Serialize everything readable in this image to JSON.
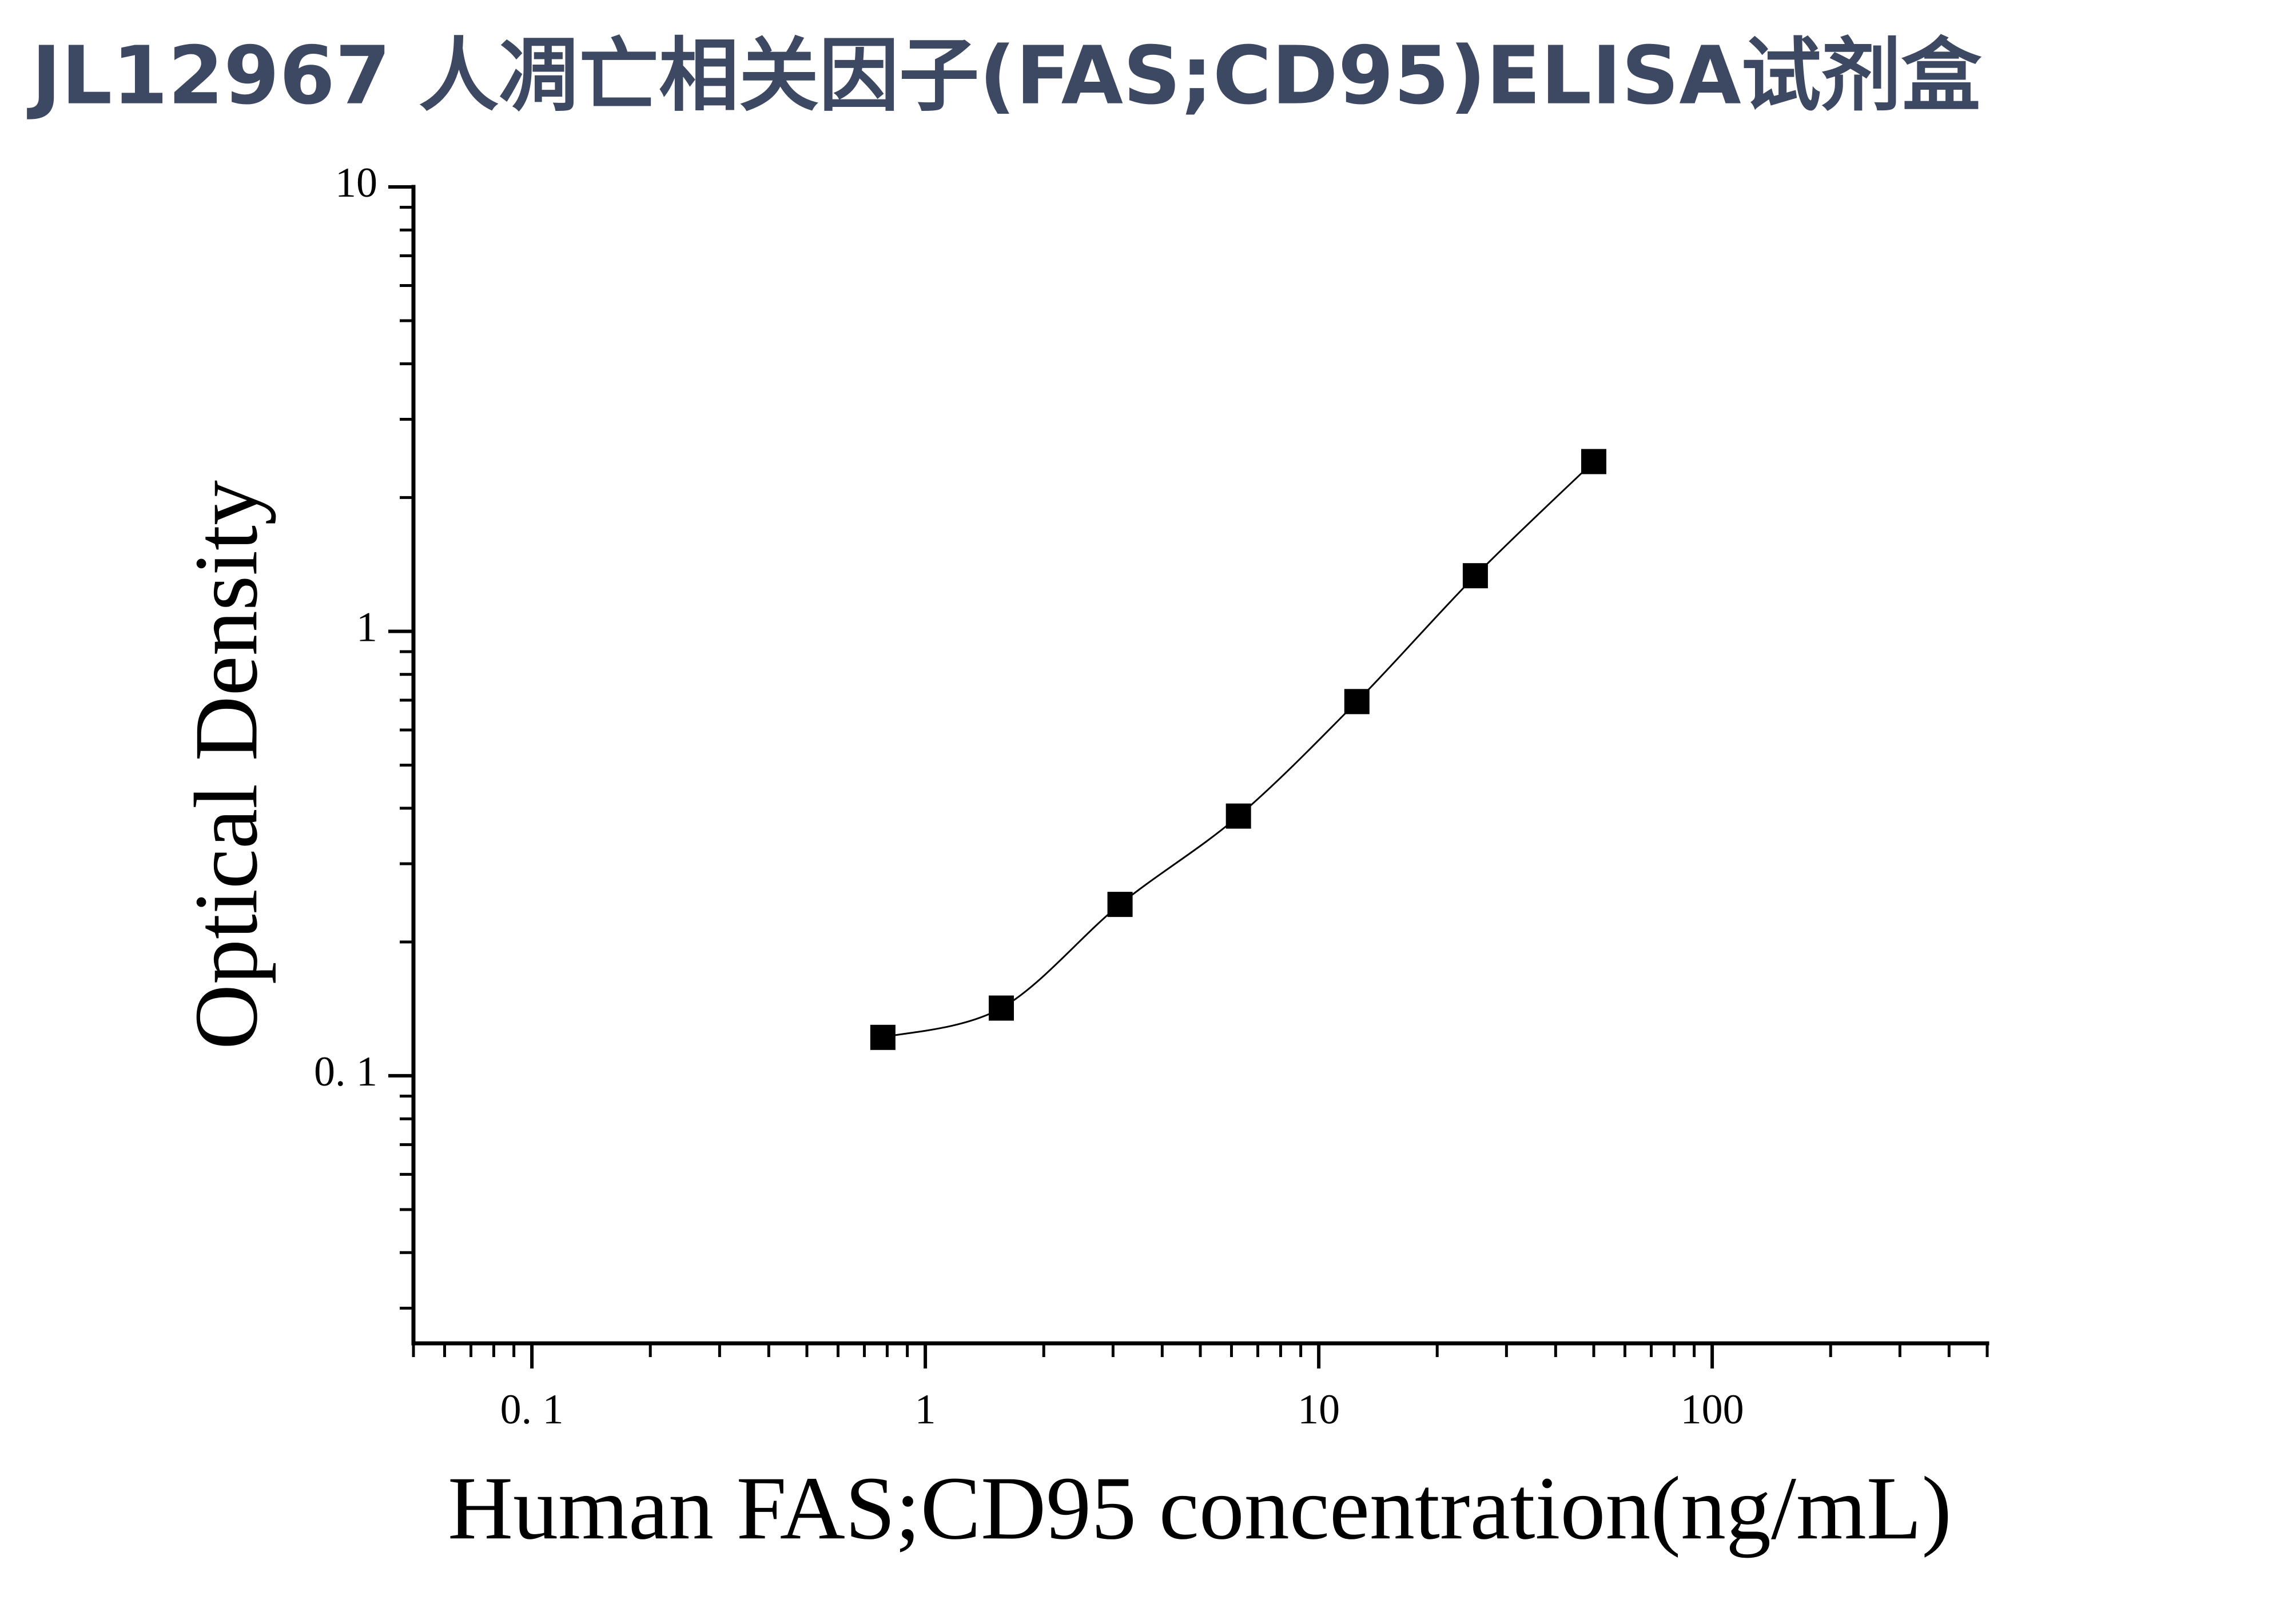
{
  "chart_data": {
    "type": "scatter",
    "title": "JL12967 人凋亡相关因子(FAS;CD95)ELISA试剂盒",
    "xlabel": "Human FAS;CD95 concentration(ng/mL)",
    "ylabel": "Optical Density",
    "xscale": "log",
    "yscale": "log",
    "xlim": [
      0.05,
      500
    ],
    "ylim": [
      0.025,
      10
    ],
    "xticks": [
      {
        "value": 0.1,
        "label": "0. 1"
      },
      1,
      10,
      100
    ],
    "yticks": [
      {
        "value": 0.1,
        "label": "0. 1"
      },
      1,
      10
    ],
    "series": [
      {
        "color": "#000000",
        "x": [
          0.78,
          1.56,
          3.125,
          6.25,
          12.5,
          25,
          50
        ],
        "values": [
          0.122,
          0.142,
          0.243,
          0.384,
          0.695,
          1.334,
          2.41
        ]
      }
    ]
  }
}
